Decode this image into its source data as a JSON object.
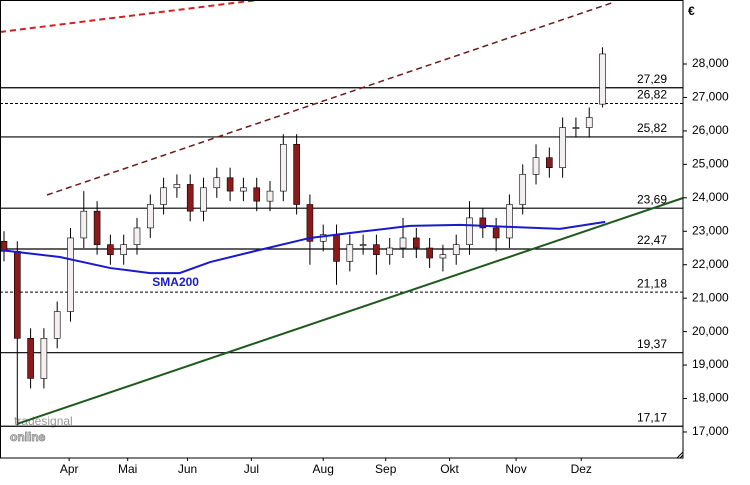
{
  "chart_data": {
    "type": "candlestick",
    "currency_label": "€",
    "xlim": [
      -0.3,
      51.05
    ],
    "xticks": [
      {
        "value": 4.9,
        "label": "Apr"
      },
      {
        "value": 9.3,
        "label": "Mai"
      },
      {
        "value": 13.8,
        "label": "Jun"
      },
      {
        "value": 18.6,
        "label": "Jul"
      },
      {
        "value": 24.0,
        "label": "Aug"
      },
      {
        "value": 28.7,
        "label": "Sep"
      },
      {
        "value": 33.5,
        "label": "Okt"
      },
      {
        "value": 38.5,
        "label": "Nov"
      },
      {
        "value": 43.4,
        "label": "Dez"
      }
    ],
    "ylim": [
      16222,
      29913
    ],
    "yticks": [
      {
        "value": 17000,
        "label": "17,000"
      },
      {
        "value": 18000,
        "label": "18,000"
      },
      {
        "value": 19000,
        "label": "19,000"
      },
      {
        "value": 20000,
        "label": "20,000"
      },
      {
        "value": 21000,
        "label": "21,000"
      },
      {
        "value": 22000,
        "label": "22,000"
      },
      {
        "value": 23000,
        "label": "23,000"
      },
      {
        "value": 24000,
        "label": "24,000"
      },
      {
        "value": 25000,
        "label": "25,000"
      },
      {
        "value": 26000,
        "label": "26,000"
      },
      {
        "value": 27000,
        "label": "27,000"
      },
      {
        "value": 28000,
        "label": "28,000"
      }
    ],
    "up_color": "#f4f0f0",
    "down_color": "#8b1a1a",
    "open": [
      22700,
      22400,
      19800,
      18600,
      19800,
      20600,
      22800,
      23600,
      22600,
      22300,
      22600,
      23100,
      23800,
      24300,
      24400,
      23600,
      24300,
      24600,
      24200,
      24300,
      23900,
      24200,
      25600,
      23800,
      22700,
      22900,
      22100,
      22600,
      22600,
      22300,
      22500,
      22800,
      22500,
      22200,
      22300,
      22600,
      23400,
      23100,
      22800,
      23800,
      24700,
      25200,
      24900,
      26100,
      26100,
      26800
    ],
    "high": [
      23000,
      22700,
      20100,
      20100,
      20900,
      23100,
      24200,
      23900,
      22900,
      22900,
      23400,
      24100,
      24600,
      24700,
      24700,
      24600,
      24900,
      24900,
      24600,
      24600,
      24500,
      25900,
      25900,
      24100,
      23200,
      23200,
      22900,
      22900,
      22900,
      22800,
      23400,
      23100,
      22800,
      22600,
      22900,
      23900,
      23700,
      23400,
      24100,
      25000,
      25600,
      25500,
      26400,
      26400,
      26700,
      28500
    ],
    "low": [
      22100,
      17200,
      18300,
      18300,
      19500,
      20300,
      22500,
      22300,
      22000,
      22000,
      22300,
      22800,
      23500,
      24000,
      23300,
      23300,
      24000,
      23900,
      23900,
      23600,
      23600,
      23900,
      23500,
      22000,
      22400,
      21400,
      21800,
      22300,
      21700,
      22000,
      22200,
      22200,
      21900,
      21800,
      22000,
      22300,
      22800,
      22400,
      22500,
      23500,
      24400,
      24600,
      24600,
      25800,
      25800,
      26700
    ],
    "close": [
      22400,
      19800,
      18600,
      19800,
      20600,
      22800,
      23600,
      22600,
      22300,
      22600,
      23100,
      23800,
      24300,
      24400,
      23600,
      24300,
      24600,
      24200,
      24300,
      23900,
      24200,
      25600,
      23800,
      22700,
      22900,
      22100,
      22600,
      22600,
      22300,
      22500,
      22800,
      22500,
      22200,
      22300,
      22600,
      23400,
      23100,
      22800,
      23800,
      24700,
      25200,
      24900,
      26100,
      26100,
      26400,
      28300
    ],
    "levels": [
      {
        "value": 27290,
        "label": "27,29",
        "style": "solid"
      },
      {
        "value": 26820,
        "label": "26,82",
        "style": "dashed"
      },
      {
        "value": 25820,
        "label": "25,82",
        "style": "solid"
      },
      {
        "value": 23690,
        "label": "23,69",
        "style": "solid"
      },
      {
        "value": 22470,
        "label": "22,47",
        "style": "solid"
      },
      {
        "value": 21180,
        "label": "21,18",
        "style": "dashed"
      },
      {
        "value": 19370,
        "label": "19,37",
        "style": "solid"
      },
      {
        "value": 17170,
        "label": "17,17",
        "style": "solid"
      }
    ],
    "lines": [
      {
        "name": "SMA200",
        "color": "#1a1acc",
        "style": "solid",
        "width": 2,
        "x": [
          -0.3,
          4.2,
          8,
          11,
          13.2,
          15.5,
          19.2,
          23,
          26.7,
          30.5,
          34.3,
          38,
          41.8,
          45.2
        ],
        "y": [
          22440,
          22230,
          21900,
          21750,
          21750,
          22080,
          22440,
          22800,
          22980,
          23160,
          23190,
          23130,
          23070,
          23280
        ]
      },
      {
        "color": "#1e5a1e",
        "style": "solid",
        "width": 2,
        "x": [
          0.98,
          51.05
        ],
        "y": [
          17239,
          23994
        ]
      },
      {
        "color": "#6b1a1a",
        "style": "dashed",
        "width": 1.5,
        "x": [
          3.23,
          45.68
        ],
        "y": [
          24084,
          29824
        ]
      },
      {
        "color": "#d42020",
        "style": "dashed",
        "width": 2,
        "x": [
          -0.3,
          19.08
        ],
        "y": [
          28957,
          29913
        ]
      }
    ],
    "watermark": [
      "tradesignal",
      "online"
    ]
  }
}
